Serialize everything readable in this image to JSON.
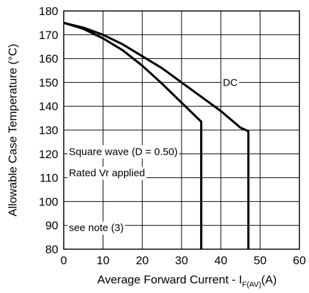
{
  "chart_data": {
    "type": "line",
    "xlabel": "Average Forward Current - I",
    "xlabel_subscript": "F(AV)",
    "xlabel_unit": "(A)",
    "ylabel": "Allowable Case Temperature (°C)",
    "xlim": [
      0,
      60
    ],
    "ylim": [
      80,
      180
    ],
    "x_ticks": [
      0,
      10,
      20,
      30,
      40,
      50,
      60
    ],
    "y_ticks": [
      80,
      90,
      100,
      110,
      120,
      130,
      140,
      150,
      160,
      170,
      180
    ],
    "grid": true,
    "series": [
      {
        "name": "DC",
        "x": [
          0,
          5,
          10,
          15,
          20,
          25,
          30,
          35,
          40,
          45,
          47,
          47
        ],
        "y": [
          175,
          173,
          170,
          166,
          161,
          156,
          150,
          144,
          138,
          131,
          129.5,
          80
        ]
      },
      {
        "name": "Square wave (D = 0.50)",
        "x": [
          0,
          5,
          10,
          15,
          20,
          25,
          30,
          35,
          35,
          35
        ],
        "y": [
          175,
          172.5,
          168.5,
          163.5,
          157,
          149.5,
          141.5,
          133.5,
          133,
          80
        ]
      }
    ],
    "annotations": [
      {
        "text": "DC",
        "x": 40.5,
        "y": 150
      },
      {
        "text": "Square wave (D = 0.50)",
        "x": 1.3,
        "y": 121
      },
      {
        "text": "Rated Vr  applied",
        "x": 1.3,
        "y": 112
      },
      {
        "text": "see note (3)",
        "x": 1.3,
        "y": 89
      }
    ]
  }
}
